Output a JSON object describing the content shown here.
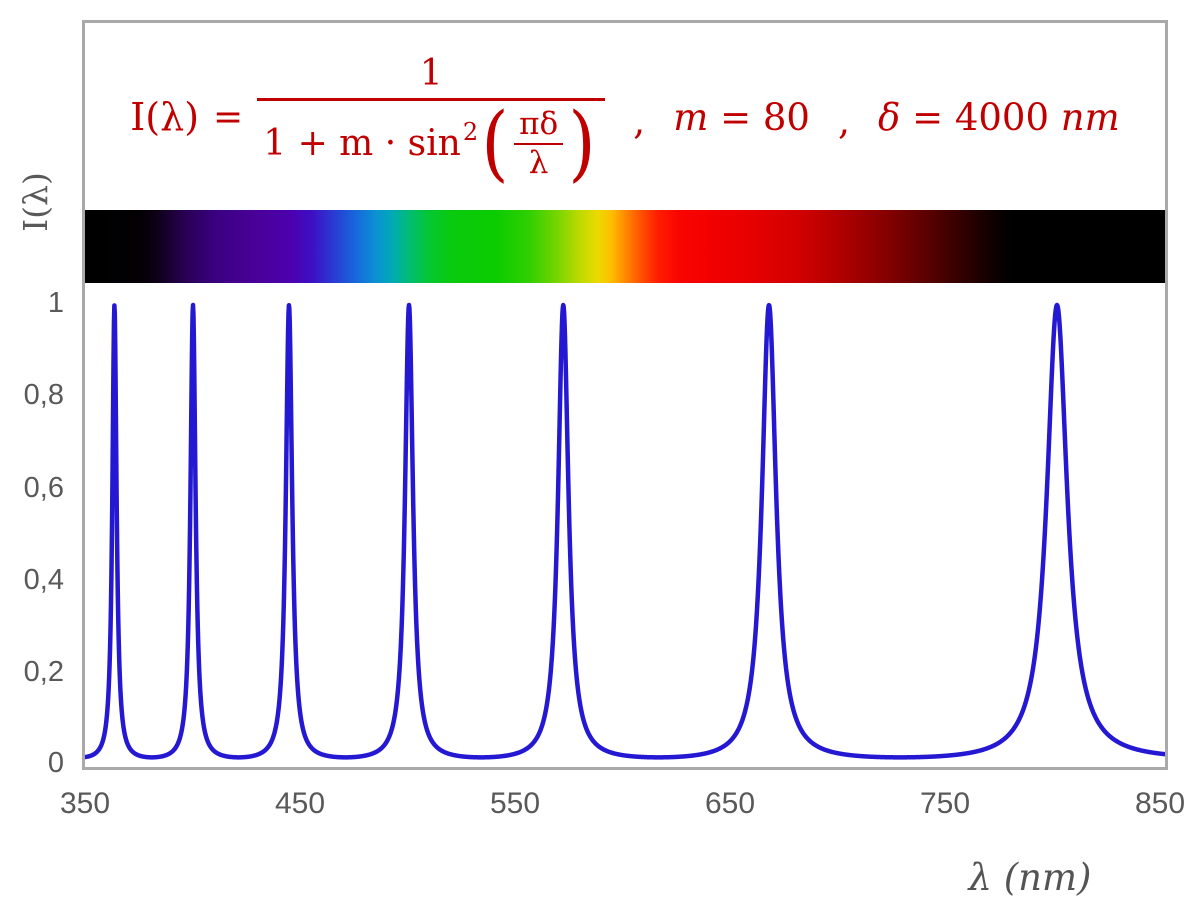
{
  "chart_data": {
    "type": "line",
    "title_formula_text": "I(λ) = 1 / (1 + m·sin²(πδ/λ)) , m = 80 , δ = 4000 nm",
    "parameters": {
      "m": 80,
      "delta_nm": 4000
    },
    "x": {
      "label": "λ  (nm)",
      "min": 350,
      "max": 850,
      "ticks": [
        "350",
        "450",
        "550",
        "650",
        "750",
        "850"
      ]
    },
    "y": {
      "label": "I(λ)",
      "min": 0,
      "max": 1,
      "ticks": [
        "1",
        "0,8",
        "0,6",
        "0,4",
        "0,2",
        "0"
      ]
    },
    "peaks_nm": [
      363.6,
      400.0,
      444.4,
      500.0,
      571.4,
      666.7,
      800.0
    ],
    "peak_intensity": 1.0,
    "baseline_intensity": 0.012,
    "sample_step_nm": 0.2,
    "curve_color": "#2418d2",
    "curve_width": 4.5,
    "grid": "off",
    "legend": "none",
    "spectrum_bar": {
      "range_nm": [
        350,
        850
      ],
      "visible_band_nm": [
        380,
        775
      ],
      "gradient_stops": [
        {
          "pos": 0,
          "color": "#000000"
        },
        {
          "pos": 5,
          "color": "#020003"
        },
        {
          "pos": 6.5,
          "color": "#0c0014"
        },
        {
          "pos": 9,
          "color": "#26004d"
        },
        {
          "pos": 12,
          "color": "#3a0080"
        },
        {
          "pos": 16,
          "color": "#4a0099"
        },
        {
          "pos": 19,
          "color": "#4c00ae"
        },
        {
          "pos": 21,
          "color": "#3d0ec4"
        },
        {
          "pos": 23,
          "color": "#2a3ad3"
        },
        {
          "pos": 25,
          "color": "#1766dc"
        },
        {
          "pos": 27,
          "color": "#0a93d2"
        },
        {
          "pos": 28.5,
          "color": "#00aab4"
        },
        {
          "pos": 30,
          "color": "#00bc74"
        },
        {
          "pos": 32,
          "color": "#05c72e"
        },
        {
          "pos": 34,
          "color": "#0aca0e"
        },
        {
          "pos": 38,
          "color": "#0acc00"
        },
        {
          "pos": 41,
          "color": "#2ecf00"
        },
        {
          "pos": 43.5,
          "color": "#70d400"
        },
        {
          "pos": 46,
          "color": "#c3da00"
        },
        {
          "pos": 47.5,
          "color": "#ecd900"
        },
        {
          "pos": 48.8,
          "color": "#ffbc00"
        },
        {
          "pos": 50,
          "color": "#ff8a00"
        },
        {
          "pos": 51.5,
          "color": "#ff5000"
        },
        {
          "pos": 53,
          "color": "#ff1e00"
        },
        {
          "pos": 55,
          "color": "#fa0400"
        },
        {
          "pos": 58,
          "color": "#f20000"
        },
        {
          "pos": 62,
          "color": "#e60000"
        },
        {
          "pos": 66,
          "color": "#d20000"
        },
        {
          "pos": 70,
          "color": "#b00000"
        },
        {
          "pos": 74,
          "color": "#880000"
        },
        {
          "pos": 78,
          "color": "#5a0000"
        },
        {
          "pos": 81,
          "color": "#350000"
        },
        {
          "pos": 83.5,
          "color": "#150000"
        },
        {
          "pos": 85.5,
          "color": "#020000"
        },
        {
          "pos": 86,
          "color": "#000000"
        },
        {
          "pos": 100,
          "color": "#000000"
        }
      ]
    }
  },
  "formula": {
    "color": "#c00000",
    "lhs": "I(λ)",
    "equals": "=",
    "numerator": "1",
    "den_text": "1 + m · sin",
    "den_sup": "2",
    "paren_open": "(",
    "paren_close": ")",
    "inner_num": "πδ",
    "inner_den": "λ",
    "comma1": ",",
    "m_var": "m",
    "m_val": " = 80",
    "comma2": ",",
    "delta_var": "δ",
    "delta_val": " = 4000 ",
    "delta_unit": "nm"
  },
  "layout_text": {
    "y_axis_title": "I(λ)",
    "x_axis_title": "λ  (nm)"
  }
}
